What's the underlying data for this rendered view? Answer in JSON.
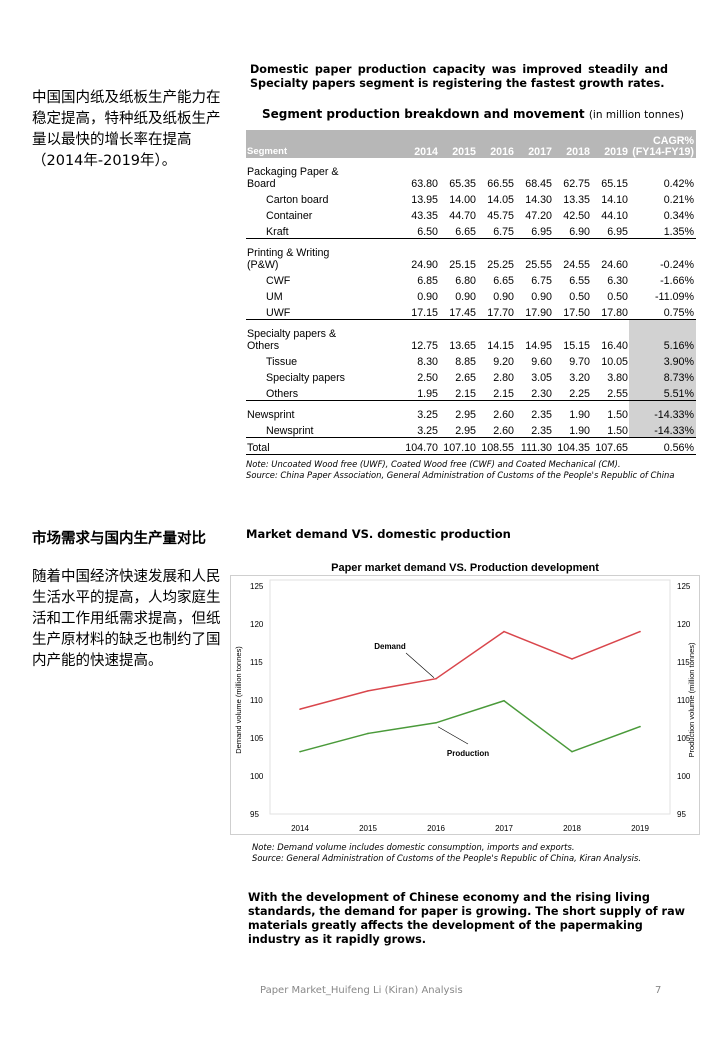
{
  "left": {
    "para1": "中国国内纸及纸板生产能力在稳定提高，特种纸及纸板生产量以最快的增长率在提高（2014年-2019年）。",
    "heading2": "市场需求与国内生产量对比",
    "para2": "随着中国经济快速发展和人民生活水平的提高，人均家庭生活和工作用纸需求提高，但纸生产原材料的缺乏也制约了国内产能的快速提高。"
  },
  "intro": "Domestic paper production capacity was improved steadily and Specialty papers segment is registering the fastest growth rates.",
  "table": {
    "title": "Segment production breakdown and movement",
    "title_unit": "(in million tonnes)",
    "header": [
      "Segment",
      "2014",
      "2015",
      "2016",
      "2017",
      "2018",
      "2019",
      "CAGR%",
      "(FY14-FY19)"
    ],
    "rows": [
      {
        "label": "Packaging Paper & Board",
        "vals": [
          "63.80",
          "65.35",
          "66.55",
          "68.45",
          "62.75",
          "65.15"
        ],
        "cagr": "0.42%"
      },
      {
        "label": "Carton board",
        "vals": [
          "13.95",
          "14.00",
          "14.05",
          "14.30",
          "13.35",
          "14.10"
        ],
        "cagr": "0.21%"
      },
      {
        "label": "Container",
        "vals": [
          "43.35",
          "44.70",
          "45.75",
          "47.20",
          "42.50",
          "44.10"
        ],
        "cagr": "0.34%"
      },
      {
        "label": "Kraft",
        "vals": [
          "6.50",
          "6.65",
          "6.75",
          "6.95",
          "6.90",
          "6.95"
        ],
        "cagr": "1.35%"
      },
      {
        "label": "Printing & Writing (P&W)",
        "vals": [
          "24.90",
          "25.15",
          "25.25",
          "25.55",
          "24.55",
          "24.60"
        ],
        "cagr": "-0.24%"
      },
      {
        "label": "CWF",
        "vals": [
          "6.85",
          "6.80",
          "6.65",
          "6.75",
          "6.55",
          "6.30"
        ],
        "cagr": "-1.66%"
      },
      {
        "label": "UM",
        "vals": [
          "0.90",
          "0.90",
          "0.90",
          "0.90",
          "0.50",
          "0.50"
        ],
        "cagr": "-11.09%"
      },
      {
        "label": "UWF",
        "vals": [
          "17.15",
          "17.45",
          "17.70",
          "17.90",
          "17.50",
          "17.80"
        ],
        "cagr": "0.75%"
      },
      {
        "label": "Specialty papers & Others",
        "vals": [
          "12.75",
          "13.65",
          "14.15",
          "14.95",
          "15.15",
          "16.40"
        ],
        "cagr": "5.16%"
      },
      {
        "label": "Tissue",
        "vals": [
          "8.30",
          "8.85",
          "9.20",
          "9.60",
          "9.70",
          "10.05"
        ],
        "cagr": "3.90%"
      },
      {
        "label": "Specialty papers",
        "vals": [
          "2.50",
          "2.65",
          "2.80",
          "3.05",
          "3.20",
          "3.80"
        ],
        "cagr": "8.73%"
      },
      {
        "label": "Others",
        "vals": [
          "1.95",
          "2.15",
          "2.15",
          "2.30",
          "2.25",
          "2.55"
        ],
        "cagr": "5.51%"
      },
      {
        "label": "Newsprint",
        "vals": [
          "3.25",
          "2.95",
          "2.60",
          "2.35",
          "1.90",
          "1.50"
        ],
        "cagr": "-14.33%"
      },
      {
        "label": "Newsprint",
        "vals": [
          "3.25",
          "2.95",
          "2.60",
          "2.35",
          "1.90",
          "1.50"
        ],
        "cagr": "-14.33%"
      },
      {
        "label": "Total",
        "vals": [
          "104.70",
          "107.10",
          "108.55",
          "111.30",
          "104.35",
          "107.65"
        ],
        "cagr": "0.56%"
      }
    ]
  },
  "note1": {
    "line1": "Note: Uncoated Wood free (UWF), Coated Wood free (CWF) and Coated Mechanical (CM).",
    "line2": "Source: China Paper Association, General Administration of Customs of the People's Republic of China"
  },
  "chart_heading": "Market demand VS. domestic production",
  "chart_data": {
    "type": "line",
    "title": "Paper market demand VS. Production development",
    "x": [
      "2014",
      "2015",
      "2016",
      "2017",
      "2018",
      "2019"
    ],
    "series": [
      {
        "name": "Demand",
        "color": "#d9464c",
        "values": [
          108.8,
          111.2,
          112.8,
          119.0,
          115.4,
          119.0
        ]
      },
      {
        "name": "Production",
        "color": "#4a9a3a",
        "values": [
          103.2,
          105.6,
          107.0,
          109.9,
          103.2,
          106.5
        ]
      }
    ],
    "ylabel": "Demand volume (million tonnes)",
    "y2label": "Production volume (million tonnes)",
    "ylim": [
      95,
      125
    ],
    "yticks": [
      95,
      100,
      105,
      110,
      115,
      120,
      125
    ],
    "grid": false
  },
  "note2": {
    "line1": "Note: Demand volume includes domestic consumption, imports and exports.",
    "line2": "Source: General Administration of Customs of the People's Republic of China, Kiran Analysis."
  },
  "closing": "With the development of Chinese economy and the rising living standards, the demand for paper is growing. The short supply of raw materials greatly affects the development of the papermaking industry as it rapidly grows.",
  "footer": "Paper Market_Huifeng Li (Kiran) Analysis",
  "page_number": "7"
}
